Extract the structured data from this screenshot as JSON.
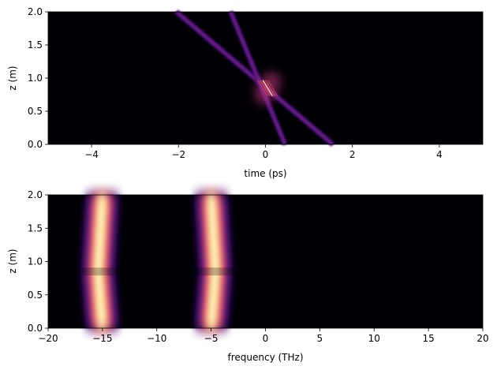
{
  "chart_data": [
    {
      "type": "heatmap",
      "colormap": "magma",
      "xlabel": "time (ps)",
      "ylabel": "z (m)",
      "xlim": [
        -5,
        5
      ],
      "ylim": [
        0,
        2
      ],
      "xticks": [
        -4,
        -2,
        0,
        2,
        4
      ],
      "yticks": [
        0.0,
        0.5,
        1.0,
        1.5,
        2.0
      ],
      "features": [
        {
          "kind": "pulse-trajectory",
          "start": {
            "time": 1.55,
            "z": 0.0
          },
          "end": {
            "time": -2.05,
            "z": 2.0
          }
        },
        {
          "kind": "pulse-trajectory",
          "start": {
            "time": 0.45,
            "z": 0.0
          },
          "end": {
            "time": -0.8,
            "z": 2.0
          }
        }
      ],
      "collision": {
        "time": 0.05,
        "z": 0.85
      }
    },
    {
      "type": "heatmap",
      "colormap": "magma",
      "xlabel": "frequency (THz)",
      "ylabel": "z (m)",
      "xlim": [
        -20,
        20
      ],
      "ylim": [
        0,
        2
      ],
      "xticks": [
        -20,
        -15,
        -10,
        -5,
        0,
        5,
        10,
        15,
        20
      ],
      "yticks": [
        0.0,
        0.5,
        1.0,
        1.5,
        2.0
      ],
      "features": [
        {
          "kind": "spectral-band",
          "center_frequency": -15,
          "center_frequency_at_collision": -15.4
        },
        {
          "kind": "spectral-band",
          "center_frequency": -5,
          "center_frequency_at_collision": -4.6
        }
      ],
      "collision": {
        "z": 0.85
      }
    }
  ]
}
